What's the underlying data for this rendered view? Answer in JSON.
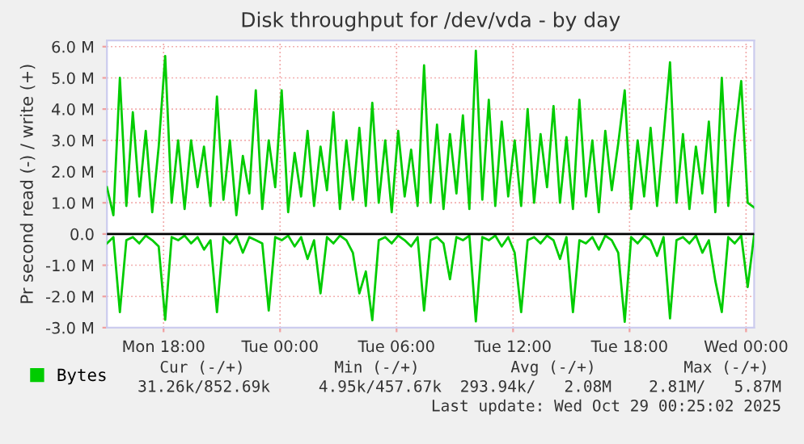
{
  "chart_data": {
    "type": "line",
    "title": "Disk throughput for /dev/vda - by day",
    "ylabel": "Pr second read (-) / write (+)",
    "x": [
      "2025-10-27T15:05",
      "2025-10-27T15:25",
      "2025-10-27T15:45",
      "2025-10-27T16:05",
      "2025-10-27T16:25",
      "2025-10-27T16:45",
      "2025-10-27T17:05",
      "2025-10-27T17:25",
      "2025-10-27T17:45",
      "2025-10-27T18:05",
      "2025-10-27T18:25",
      "2025-10-27T18:45",
      "2025-10-27T19:05",
      "2025-10-27T19:25",
      "2025-10-27T19:45",
      "2025-10-27T20:05",
      "2025-10-27T20:25",
      "2025-10-27T20:45",
      "2025-10-27T21:05",
      "2025-10-27T21:25",
      "2025-10-27T21:45",
      "2025-10-27T22:05",
      "2025-10-27T22:25",
      "2025-10-27T22:45",
      "2025-10-27T23:05",
      "2025-10-27T23:25",
      "2025-10-27T23:45",
      "2025-10-28T00:05",
      "2025-10-28T00:25",
      "2025-10-28T00:45",
      "2025-10-28T01:05",
      "2025-10-28T01:25",
      "2025-10-28T01:45",
      "2025-10-28T02:05",
      "2025-10-28T02:25",
      "2025-10-28T02:45",
      "2025-10-28T03:05",
      "2025-10-28T03:25",
      "2025-10-28T03:45",
      "2025-10-28T04:05",
      "2025-10-28T04:25",
      "2025-10-28T04:45",
      "2025-10-28T05:05",
      "2025-10-28T05:25",
      "2025-10-28T05:45",
      "2025-10-28T06:05",
      "2025-10-28T06:25",
      "2025-10-28T06:45",
      "2025-10-28T07:05",
      "2025-10-28T07:25",
      "2025-10-28T07:45",
      "2025-10-28T08:05",
      "2025-10-28T08:25",
      "2025-10-28T08:45",
      "2025-10-28T09:05",
      "2025-10-28T09:25",
      "2025-10-28T09:45",
      "2025-10-28T10:05",
      "2025-10-28T10:25",
      "2025-10-28T10:45",
      "2025-10-28T11:05",
      "2025-10-28T11:25",
      "2025-10-28T11:45",
      "2025-10-28T12:05",
      "2025-10-28T12:25",
      "2025-10-28T12:45",
      "2025-10-28T13:05",
      "2025-10-28T13:25",
      "2025-10-28T13:45",
      "2025-10-28T14:05",
      "2025-10-28T14:25",
      "2025-10-28T14:45",
      "2025-10-28T15:05",
      "2025-10-28T15:25",
      "2025-10-28T15:45",
      "2025-10-28T16:05",
      "2025-10-28T16:25",
      "2025-10-28T16:45",
      "2025-10-28T17:05",
      "2025-10-28T17:25",
      "2025-10-28T17:45",
      "2025-10-28T18:05",
      "2025-10-28T18:25",
      "2025-10-28T18:45",
      "2025-10-28T19:05",
      "2025-10-28T19:25",
      "2025-10-28T19:45",
      "2025-10-28T20:05",
      "2025-10-28T20:25",
      "2025-10-28T20:45",
      "2025-10-28T21:05",
      "2025-10-28T21:25",
      "2025-10-28T21:45",
      "2025-10-28T22:05",
      "2025-10-28T22:25",
      "2025-10-28T22:45",
      "2025-10-28T23:05",
      "2025-10-28T23:25",
      "2025-10-28T23:45",
      "2025-10-29T00:05",
      "2025-10-29T00:25"
    ],
    "series": [
      {
        "name": "Bytes",
        "color": "#00cc00",
        "values": [
          1.5,
          0.6,
          5.0,
          0.9,
          3.9,
          1.2,
          3.3,
          0.7,
          2.8,
          5.7,
          1.0,
          3.0,
          0.8,
          3.0,
          1.5,
          2.8,
          0.9,
          4.4,
          1.1,
          3.0,
          0.6,
          2.5,
          1.3,
          4.6,
          0.8,
          3.0,
          1.5,
          4.6,
          0.7,
          2.6,
          1.2,
          3.3,
          0.9,
          2.8,
          1.4,
          3.9,
          0.8,
          3.0,
          1.1,
          3.4,
          0.9,
          4.2,
          1.0,
          3.0,
          0.7,
          3.3,
          1.2,
          2.7,
          0.9,
          5.4,
          1.0,
          3.5,
          0.8,
          3.2,
          1.3,
          3.8,
          0.8,
          5.87,
          1.1,
          4.3,
          0.9,
          3.6,
          1.2,
          3.0,
          0.9,
          4.0,
          1.0,
          3.2,
          1.5,
          4.1,
          1.0,
          3.1,
          0.8,
          4.3,
          1.2,
          3.0,
          0.7,
          3.3,
          1.4,
          2.9,
          4.6,
          0.8,
          3.0,
          1.2,
          3.4,
          0.9,
          3.1,
          5.5,
          1.0,
          3.2,
          0.8,
          2.8,
          1.3,
          3.6,
          0.7,
          5.0,
          0.9,
          3.1,
          4.9,
          1.0,
          0.85
        ]
      },
      {
        "color": "#00cc00",
        "values": [
          -0.3,
          -0.1,
          -2.5,
          -0.2,
          -0.1,
          -0.3,
          -0.05,
          -0.2,
          -0.4,
          -2.75,
          -0.1,
          -0.2,
          -0.05,
          -0.3,
          -0.1,
          -0.5,
          -0.2,
          -2.5,
          -0.1,
          -0.3,
          -0.05,
          -0.6,
          -0.1,
          -0.2,
          -0.3,
          -2.45,
          -0.1,
          -0.2,
          -0.05,
          -0.4,
          -0.1,
          -0.8,
          -0.2,
          -1.9,
          -0.1,
          -0.3,
          -0.05,
          -0.2,
          -0.6,
          -1.9,
          -1.2,
          -2.76,
          -0.2,
          -0.1,
          -0.3,
          -0.05,
          -0.2,
          -0.4,
          -0.1,
          -2.45,
          -0.2,
          -0.1,
          -0.3,
          -1.45,
          -0.1,
          -0.2,
          -0.05,
          -2.8,
          -0.1,
          -0.2,
          -0.05,
          -0.4,
          -0.1,
          -0.6,
          -2.5,
          -0.2,
          -0.1,
          -0.3,
          -0.05,
          -0.2,
          -0.8,
          -0.1,
          -2.5,
          -0.2,
          -0.3,
          -0.1,
          -0.5,
          -0.05,
          -0.2,
          -0.6,
          -2.81,
          -0.1,
          -0.3,
          -0.05,
          -0.2,
          -0.7,
          -0.1,
          -2.7,
          -0.2,
          -0.1,
          -0.3,
          -0.05,
          -0.6,
          -0.2,
          -1.5,
          -2.5,
          -0.1,
          -0.3,
          -0.05,
          -1.7,
          -0.03
        ]
      }
    ],
    "xlim": [
      "2025-10-27T15:05",
      "2025-10-29T00:25"
    ],
    "xticks": [
      {
        "value": "2025-10-27T18:00",
        "label": "Mon 18:00"
      },
      {
        "value": "2025-10-28T00:00",
        "label": "Tue 00:00"
      },
      {
        "value": "2025-10-28T06:00",
        "label": "Tue 06:00"
      },
      {
        "value": "2025-10-28T12:00",
        "label": "Tue 12:00"
      },
      {
        "value": "2025-10-28T18:00",
        "label": "Tue 18:00"
      },
      {
        "value": "2025-10-29T00:00",
        "label": "Wed 00:00"
      }
    ],
    "ylim": [
      -3,
      6.2
    ],
    "yticks": [
      {
        "value": -3,
        "label": "-3.0 M"
      },
      {
        "value": -2,
        "label": "-2.0 M"
      },
      {
        "value": -1,
        "label": "-1.0 M"
      },
      {
        "value": 0,
        "label": "0.0"
      },
      {
        "value": 1,
        "label": "1.0 M"
      },
      {
        "value": 2,
        "label": "2.0 M"
      },
      {
        "value": 3,
        "label": "3.0 M"
      },
      {
        "value": 4,
        "label": "4.0 M"
      },
      {
        "value": 5,
        "label": "5.0 M"
      },
      {
        "value": 6,
        "label": "6.0 M"
      }
    ],
    "ref_lines": [
      {
        "axis": "y",
        "value": 0,
        "color": "#000000"
      }
    ],
    "grid": true,
    "legend": "bottom",
    "marker": "none",
    "line_style": "solid",
    "annotations": [
      "Cur (-/+)",
      "Min (-/+)",
      "Avg (-/+)",
      "Max (-/+)",
      "31.26k/852.69k",
      "4.95k/457.67k",
      "293.94k/   2.08M",
      "2.81M/   5.87M",
      "Last update: Wed Oct 29 00:25:02 2025"
    ]
  }
}
